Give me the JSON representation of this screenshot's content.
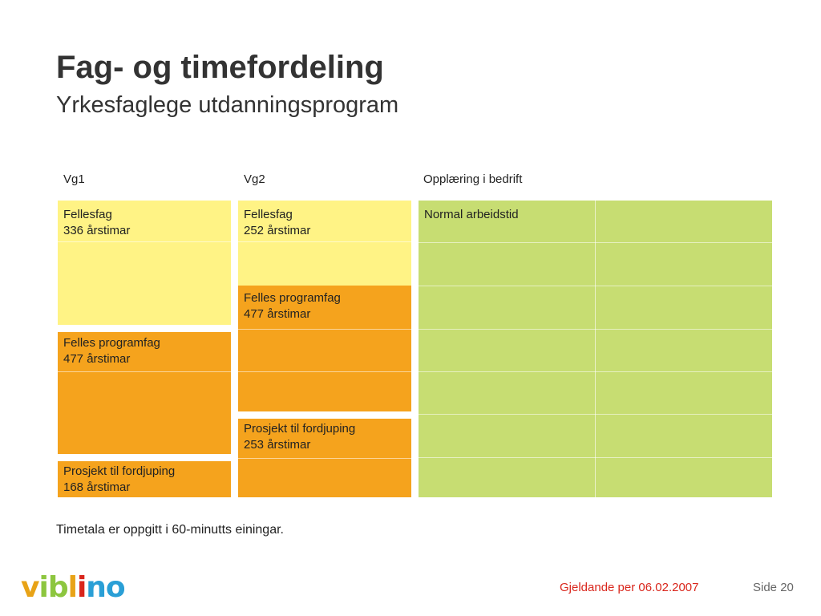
{
  "slide": {
    "title": "Fag- og timefordeling",
    "subtitle": "Yrkesfaglege utdanningsprogram",
    "note": "Timetala er oppgitt i 60-minutts einingar.",
    "footer_date": "Gjeldande per 06.02.2007",
    "footer_page": "Side 20"
  },
  "columns": {
    "vg1": {
      "heading": "Vg1",
      "blocks": [
        {
          "name": "Fellesfag",
          "hours": "336 årstimar"
        },
        {
          "name": "Felles programfag",
          "hours": "477 årstimar"
        },
        {
          "name": "Prosjekt til fordjuping",
          "hours": "168 årstimar"
        }
      ]
    },
    "vg2": {
      "heading": "Vg2",
      "blocks": [
        {
          "name": "Fellesfag",
          "hours": "252 årstimar"
        },
        {
          "name": "Felles programfag",
          "hours": "477 årstimar"
        },
        {
          "name": "Prosjekt til fordjuping",
          "hours": "253 årstimar"
        }
      ]
    },
    "bedrift": {
      "heading": "Opplæring i bedrift",
      "block": "Normal arbeidstid"
    }
  },
  "logo": {
    "letters": [
      "v",
      "i",
      "b",
      "l",
      "i",
      "n",
      "o"
    ],
    "colors": [
      "#e8a317",
      "#8dc63f",
      "#8dc63f",
      "#e8a317",
      "#d9261c",
      "#2a9fd6",
      "#2a9fd6"
    ]
  },
  "colors": {
    "fellesfag": "#fff385",
    "programfag": "#f5a31d",
    "bedrift": "#c7dd72",
    "footer_date": "#d9261c"
  }
}
